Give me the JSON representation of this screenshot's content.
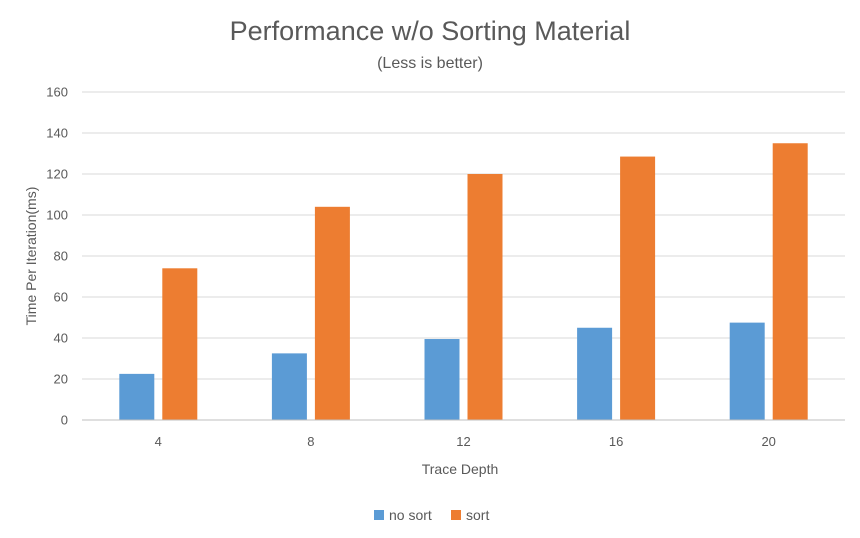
{
  "chart_data": {
    "type": "bar",
    "title": "Performance w/o Sorting Material",
    "subtitle": "(Less is better)",
    "xlabel": "Trace Depth",
    "ylabel": "Time  Per Iteration(ms)",
    "categories": [
      "4",
      "8",
      "12",
      "16",
      "20"
    ],
    "series": [
      {
        "name": "no sort",
        "color": "#5b9bd5",
        "values": [
          22.5,
          32.5,
          39.5,
          45,
          47.5
        ]
      },
      {
        "name": "sort",
        "color": "#ed7d31",
        "values": [
          74,
          104,
          120,
          128.5,
          135
        ]
      }
    ],
    "ylim": [
      0,
      160
    ],
    "yticks": [
      "0",
      "20",
      "40",
      "60",
      "80",
      "100",
      "120",
      "140",
      "160"
    ],
    "grid": true,
    "legend": "bottom-center"
  }
}
